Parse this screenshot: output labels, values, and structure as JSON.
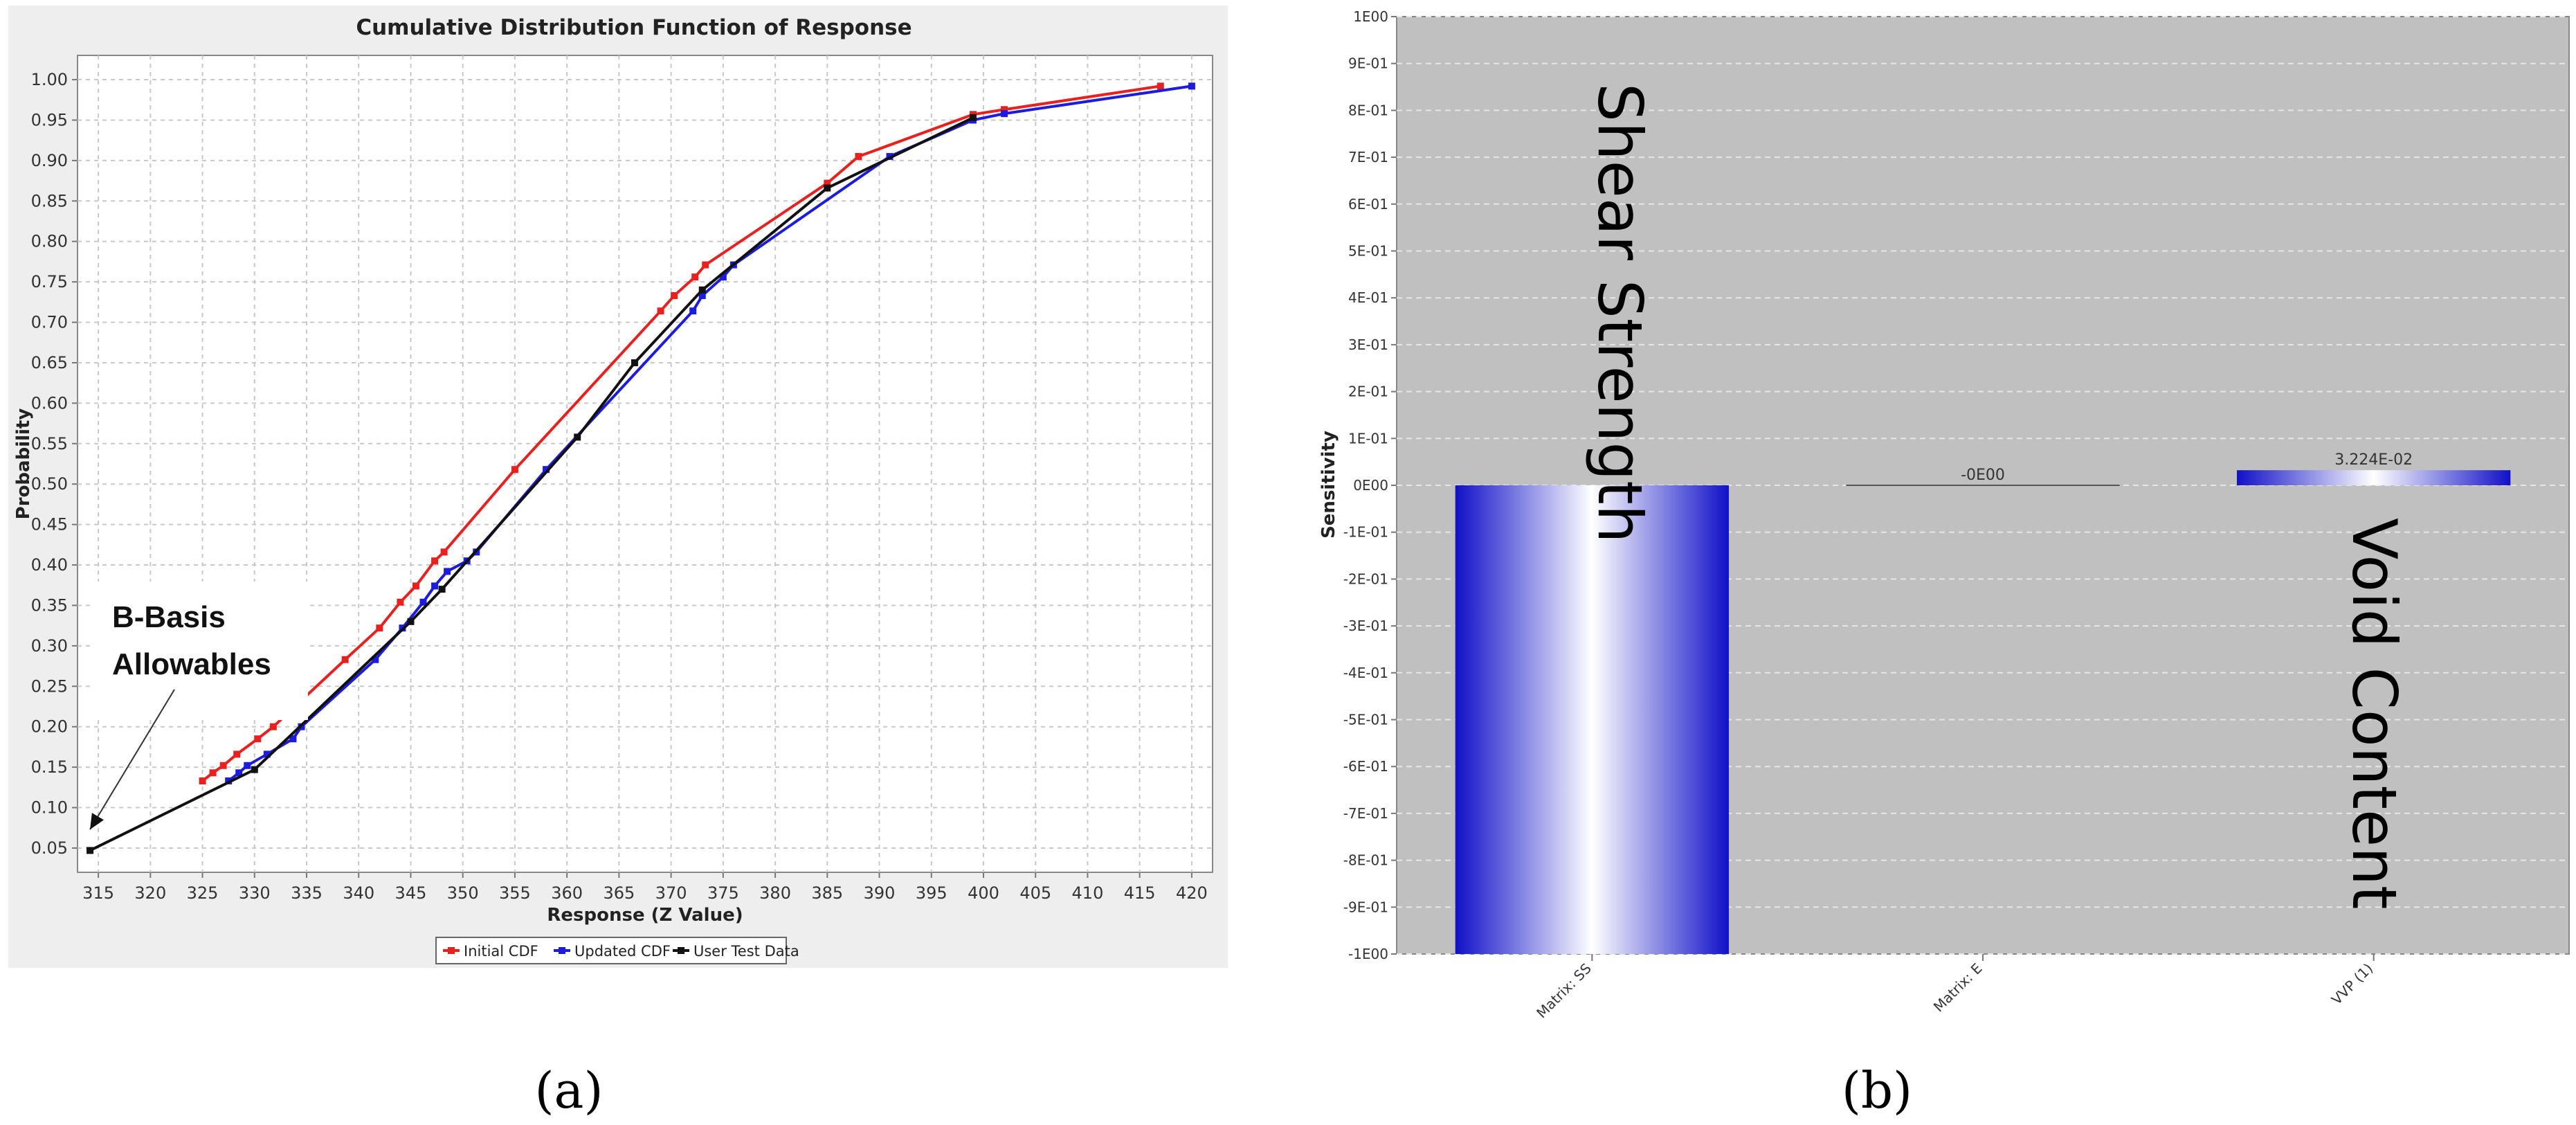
{
  "chart_data": [
    {
      "type": "line",
      "panel_caption": "(a)",
      "title": "Cumulative Distribution Function of Response",
      "xlabel": "Response (Z Value)",
      "ylabel": "Probability",
      "xlim": [
        313,
        422
      ],
      "ylim": [
        0.02,
        1.03
      ],
      "xticks": [
        "315",
        "320",
        "325",
        "330",
        "335",
        "340",
        "345",
        "350",
        "355",
        "360",
        "365",
        "370",
        "375",
        "380",
        "385",
        "390",
        "395",
        "400",
        "405",
        "410",
        "415",
        "420"
      ],
      "yticks": [
        "0.05",
        "0.10",
        "0.15",
        "0.20",
        "0.25",
        "0.30",
        "0.35",
        "0.40",
        "0.45",
        "0.50",
        "0.55",
        "0.60",
        "0.65",
        "0.70",
        "0.75",
        "0.80",
        "0.85",
        "0.90",
        "0.95",
        "1.00"
      ],
      "grid": true,
      "legend_position": "bottom-center",
      "colors": {
        "Initial CDF": "#e8201e",
        "Updated CDF": "#1c1ce0",
        "User Test Data": "#111111"
      },
      "series": [
        {
          "name": "Initial CDF",
          "x": [
            325,
            326,
            327,
            328.3,
            330.3,
            331.8,
            338.7,
            342,
            344,
            345.5,
            347.3,
            348.2,
            355,
            369,
            370.3,
            372.3,
            373.3,
            385,
            388,
            399,
            402,
            417
          ],
          "y": [
            0.133,
            0.143,
            0.152,
            0.166,
            0.185,
            0.2,
            0.283,
            0.322,
            0.354,
            0.374,
            0.405,
            0.416,
            0.518,
            0.714,
            0.733,
            0.756,
            0.771,
            0.872,
            0.905,
            0.957,
            0.963,
            0.992
          ]
        },
        {
          "name": "Updated CDF",
          "x": [
            327.5,
            328.5,
            329.3,
            331.2,
            333.7,
            334.5,
            341.6,
            344.2,
            346.2,
            347.3,
            348.5,
            350.4,
            351.3,
            358,
            372.1,
            373,
            375,
            376,
            391,
            399,
            402,
            420
          ],
          "y": [
            0.133,
            0.143,
            0.152,
            0.166,
            0.185,
            0.2,
            0.283,
            0.322,
            0.354,
            0.374,
            0.392,
            0.405,
            0.416,
            0.518,
            0.714,
            0.733,
            0.756,
            0.771,
            0.905,
            0.95,
            0.958,
            0.992
          ]
        },
        {
          "name": "User Test Data",
          "x": [
            314.2,
            330,
            345,
            348,
            361,
            366.5,
            373,
            385,
            399
          ],
          "y": [
            0.047,
            0.147,
            0.33,
            0.37,
            0.558,
            0.65,
            0.74,
            0.866,
            0.953
          ]
        }
      ],
      "annotations": [
        {
          "text": "B-Basis",
          "points_to": {
            "x": 314.2,
            "y": 0.073
          }
        },
        {
          "text": "Allowables"
        }
      ]
    },
    {
      "type": "bar",
      "panel_caption": "(b)",
      "ylabel": "Sensitivity",
      "ylim": [
        -1.0,
        1.0
      ],
      "yticks": [
        "1E00",
        "9E-01",
        "8E-01",
        "7E-01",
        "6E-01",
        "5E-01",
        "4E-01",
        "3E-01",
        "2E-01",
        "1E-01",
        "0E00",
        "-1E-01",
        "-2E-01",
        "-3E-01",
        "-4E-01",
        "-5E-01",
        "-6E-01",
        "-7E-01",
        "-8E-01",
        "-9E-01",
        "-1E00"
      ],
      "categories": [
        "Matrix: SS",
        "Matrix: E",
        "VVP (1)"
      ],
      "values": [
        -1.0,
        -0.0,
        0.03224
      ],
      "data_labels": [
        "",
        "-0E00",
        "3.224E-02"
      ],
      "bar_color": "#1a1acc",
      "grid": true,
      "annotations": [
        {
          "text": "Shear Strength"
        },
        {
          "text": "Void Content"
        }
      ]
    }
  ]
}
